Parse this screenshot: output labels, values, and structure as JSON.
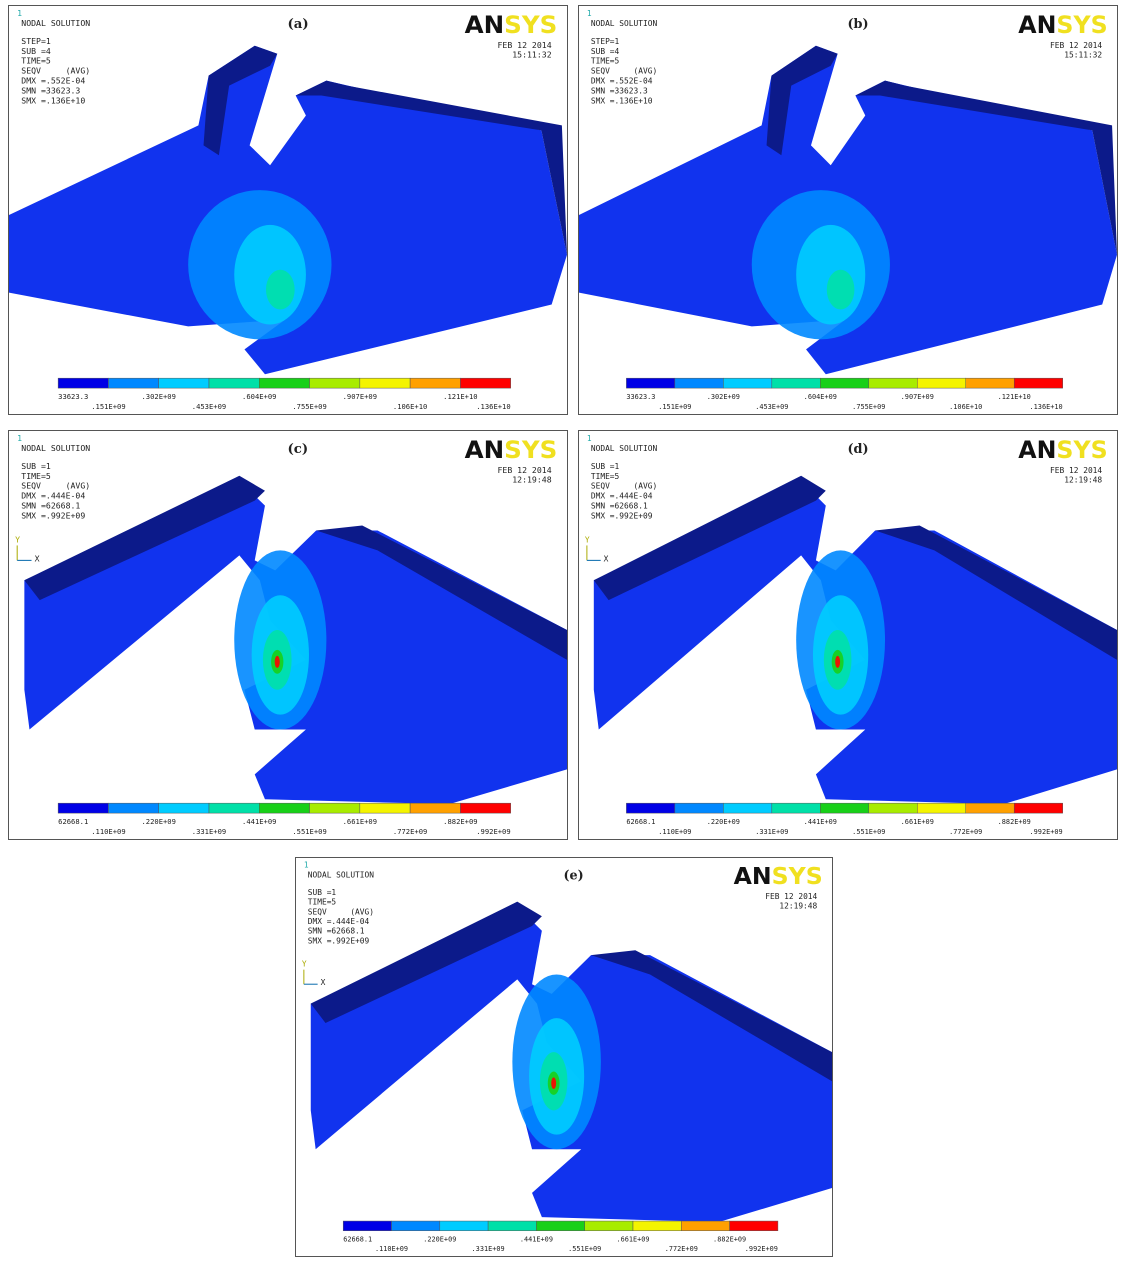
{
  "legend_colors": [
    "#0000e6",
    "#0088ff",
    "#00ccff",
    "#00e0a8",
    "#18d018",
    "#a8ec00",
    "#f4f400",
    "#ffa000",
    "#ff0000"
  ],
  "panels": [
    {
      "label": "(a)",
      "window_number": "1",
      "heading": "NODAL SOLUTION",
      "info": [
        "STEP=1",
        "SUB =4",
        "TIME=5",
        "SEQV     (AVG)",
        "DMX =.552E-04",
        "SMN =33623.3",
        "SMX =.136E+10"
      ],
      "logo": [
        "AN",
        "SYS"
      ],
      "date": "FEB 12 2014",
      "time": "15:11:32",
      "legend_labels": [
        "33623.3",
        ".151E+09",
        ".302E+09",
        ".453E+09",
        ".604E+09",
        ".755E+09",
        ".907E+09",
        ".106E+10",
        ".121E+10",
        ".136E+10"
      ]
    },
    {
      "label": "(b)",
      "window_number": "1",
      "heading": "NODAL SOLUTION",
      "info": [
        "STEP=1",
        "SUB =4",
        "TIME=5",
        "SEQV     (AVG)",
        "DMX =.552E-04",
        "SMN =33623.3",
        "SMX =.136E+10"
      ],
      "logo": [
        "AN",
        "SYS"
      ],
      "date": "FEB 12 2014",
      "time": "15:11:32",
      "legend_labels": [
        "33623.3",
        ".151E+09",
        ".302E+09",
        ".453E+09",
        ".604E+09",
        ".755E+09",
        ".907E+09",
        ".106E+10",
        ".121E+10",
        ".136E+10"
      ]
    },
    {
      "label": "(c)",
      "window_number": "1",
      "heading": "NODAL SOLUTION",
      "info": [
        "SUB =1",
        "TIME=5",
        "SEQV     (AVG)",
        "DMX =.444E-04",
        "SMN =62668.1",
        "SMX =.992E+09"
      ],
      "logo": [
        "AN",
        "SYS"
      ],
      "date": "FEB 12 2014",
      "time": "12:19:48",
      "triad": [
        "Y",
        "X"
      ],
      "legend_labels": [
        "62668.1",
        ".110E+09",
        ".220E+09",
        ".331E+09",
        ".441E+09",
        ".551E+09",
        ".661E+09",
        ".772E+09",
        ".882E+09",
        ".992E+09"
      ]
    },
    {
      "label": "(d)",
      "window_number": "1",
      "heading": "NODAL SOLUTION",
      "info": [
        "SUB =1",
        "TIME=5",
        "SEQV     (AVG)",
        "DMX =.444E-04",
        "SMN =62668.1",
        "SMX =.992E+09"
      ],
      "logo": [
        "AN",
        "SYS"
      ],
      "date": "FEB 12 2014",
      "time": "12:19:48",
      "triad": [
        "Y",
        "X"
      ],
      "legend_labels": [
        "62668.1",
        ".110E+09",
        ".220E+09",
        ".331E+09",
        ".441E+09",
        ".551E+09",
        ".661E+09",
        ".772E+09",
        ".882E+09",
        ".992E+09"
      ]
    },
    {
      "label": "(e)",
      "window_number": "1",
      "heading": "NODAL SOLUTION",
      "info": [
        "SUB =1",
        "TIME=5",
        "SEQV     (AVG)",
        "DMX =.444E-04",
        "SMN =62668.1",
        "SMX =.992E+09"
      ],
      "logo": [
        "AN",
        "SYS"
      ],
      "date": "FEB 12 2014",
      "time": "12:19:48",
      "triad": [
        "Y",
        "X"
      ],
      "legend_labels": [
        "62668.1",
        ".110E+09",
        ".220E+09",
        ".331E+09",
        ".441E+09",
        ".551E+09",
        ".661E+09",
        ".772E+09",
        ".882E+09",
        ".992E+09"
      ]
    }
  ]
}
